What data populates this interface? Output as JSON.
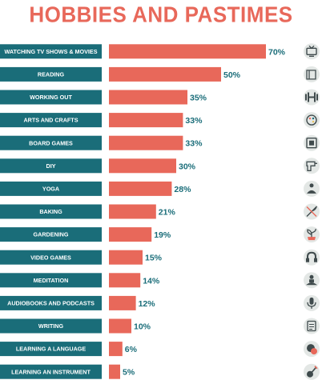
{
  "title": "HOBBIES AND PASTIMES",
  "colors": {
    "title": "#e8685a",
    "label_bar": "#1a6d79",
    "value_bar": "#e8685a",
    "value_text": "#1a6d79",
    "icon_bg": "#e3e7e5",
    "icon_ink": "#3f4a4c"
  },
  "chart_data": {
    "type": "bar",
    "orientation": "horizontal",
    "title": "HOBBIES AND PASTIMES",
    "xlim": [
      0,
      70
    ],
    "categories": [
      "WATCHING TV SHOWS & MOVIES",
      "READING",
      "WORKING OUT",
      "ARTS AND CRAFTS",
      "BOARD GAMES",
      "DIY",
      "YOGA",
      "BAKING",
      "GARDENING",
      "VIDEO GAMES",
      "MEDITATION",
      "AUDIOBOOKS AND PODCASTS",
      "WRITING",
      "LEARNING A LANGUAGE",
      "LEARNING AN INSTRUMENT"
    ],
    "values": [
      70,
      50,
      35,
      33,
      33,
      30,
      28,
      21,
      19,
      15,
      14,
      12,
      10,
      6,
      5
    ],
    "value_labels": [
      "70%",
      "50%",
      "35%",
      "33%",
      "33%",
      "30%",
      "28%",
      "21%",
      "19%",
      "15%",
      "14%",
      "12%",
      "10%",
      "6%",
      "5%"
    ],
    "icons": [
      "tv-icon",
      "book-icon",
      "dumbbell-icon",
      "palette-icon",
      "board-game-icon",
      "drill-icon",
      "yoga-icon",
      "whisk-icon",
      "plant-icon",
      "gamepad-icon",
      "meditation-icon",
      "microphone-icon",
      "notepad-icon",
      "globe-icon",
      "guitar-icon"
    ]
  }
}
